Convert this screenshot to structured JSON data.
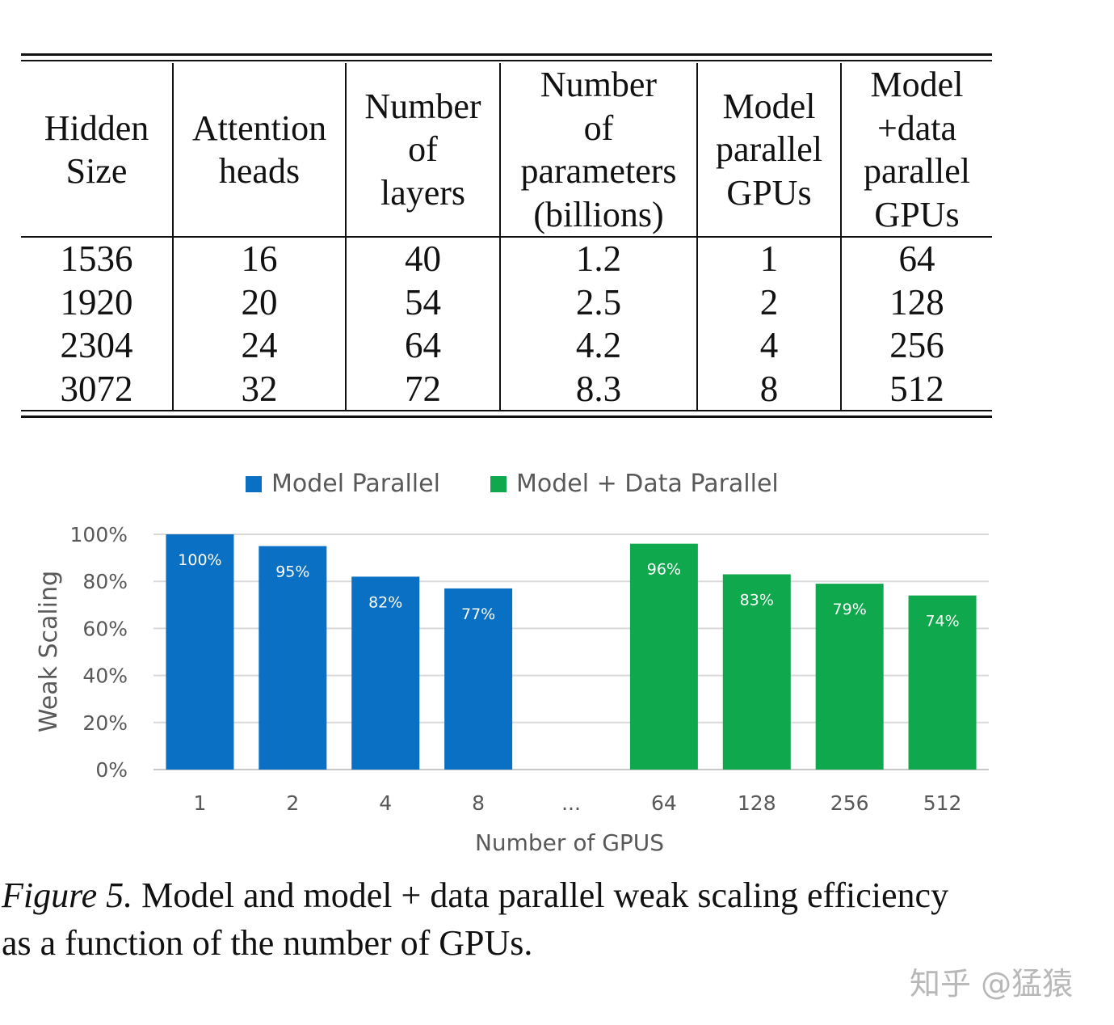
{
  "table": {
    "columns": [
      [
        "Hidden",
        "Size"
      ],
      [
        "Attention",
        "heads"
      ],
      [
        "Number",
        "of",
        "layers"
      ],
      [
        "Number",
        "of",
        "parameters",
        "(billions)"
      ],
      [
        "Model",
        "parallel",
        "GPUs"
      ],
      [
        "Model",
        "+data",
        "parallel",
        "GPUs"
      ]
    ],
    "rows": [
      [
        "1536",
        "16",
        "40",
        "1.2",
        "1",
        "64"
      ],
      [
        "1920",
        "20",
        "54",
        "2.5",
        "2",
        "128"
      ],
      [
        "2304",
        "24",
        "64",
        "4.2",
        "4",
        "256"
      ],
      [
        "3072",
        "32",
        "72",
        "8.3",
        "8",
        "512"
      ]
    ]
  },
  "chart_data": {
    "type": "bar",
    "categories": [
      "1",
      "2",
      "4",
      "8",
      "...",
      "64",
      "128",
      "256",
      "512"
    ],
    "series": [
      {
        "name": "Model Parallel",
        "color": "#0a70c3",
        "values": [
          100,
          95,
          82,
          77,
          null,
          null,
          null,
          null,
          null
        ]
      },
      {
        "name": "Model + Data Parallel",
        "color": "#0fa84c",
        "values": [
          null,
          null,
          null,
          null,
          null,
          96,
          83,
          79,
          74
        ]
      }
    ],
    "data_labels": [
      "100%",
      "95%",
      "82%",
      "77%",
      "",
      "96%",
      "83%",
      "79%",
      "74%"
    ],
    "ylabel": "Weak Scaling",
    "xlabel": "Number of GPUS",
    "yticks": [
      "0%",
      "20%",
      "40%",
      "60%",
      "80%",
      "100%"
    ],
    "ylim": [
      0,
      100
    ],
    "grid": true,
    "legend": "top-center"
  },
  "caption": {
    "label": "Figure 5.",
    "line1": "Model and model + data parallel weak scaling efficiency",
    "line2": "as a function of the number of GPUs."
  },
  "watermark": "知乎 @猛猿"
}
